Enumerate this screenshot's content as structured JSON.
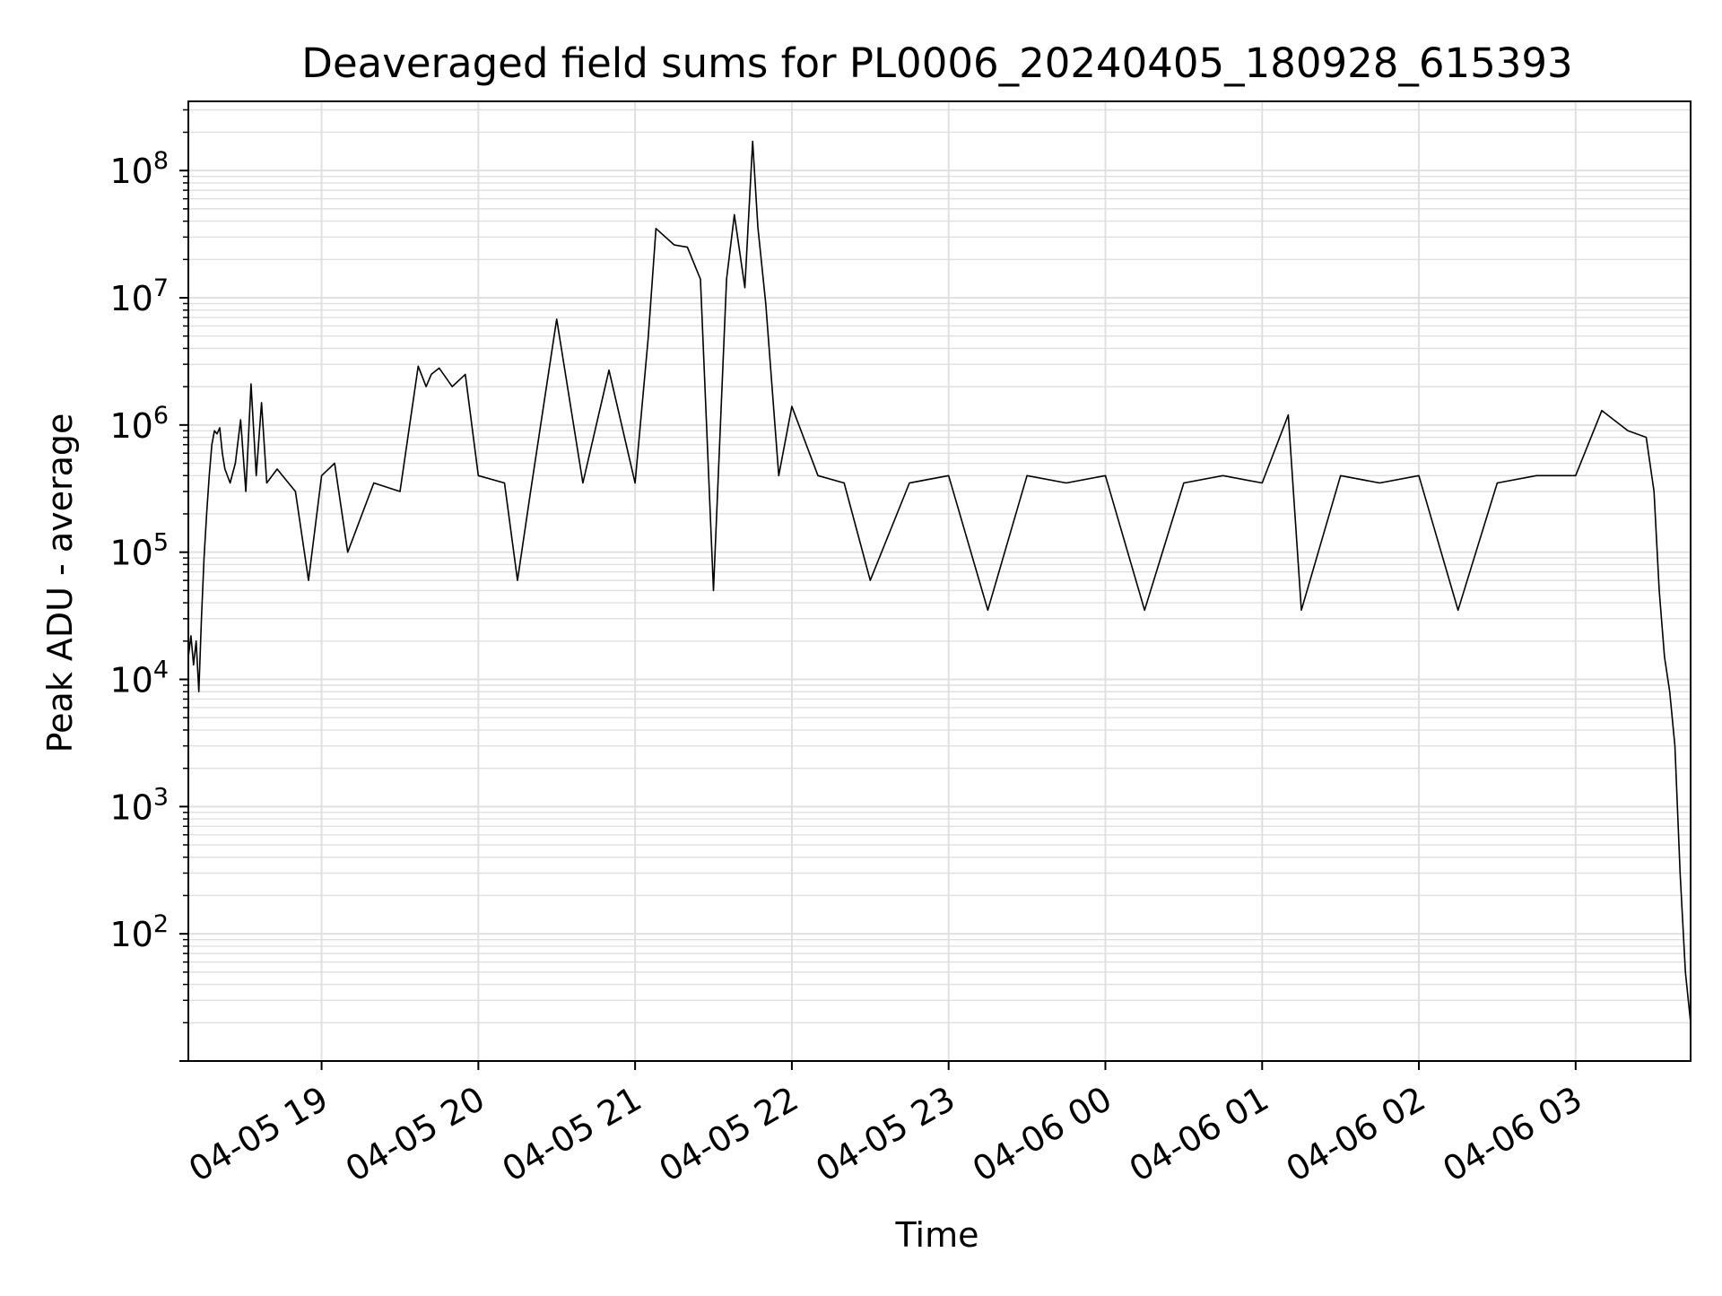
{
  "chart_data": {
    "type": "line",
    "title": "Deaveraged field sums for PL0006_20240405_180928_615393",
    "xlabel": "Time",
    "ylabel": "Peak ADU - average",
    "yscale": "log",
    "ylim": [
      10,
      350000000
    ],
    "xlim": [
      "2024-04-05 18:09",
      "2024-04-06 03:44"
    ],
    "grid": true,
    "x_ticks": [
      {
        "t": "2024-04-05 19:00",
        "label": "04-05 19"
      },
      {
        "t": "2024-04-05 20:00",
        "label": "04-05 20"
      },
      {
        "t": "2024-04-05 21:00",
        "label": "04-05 21"
      },
      {
        "t": "2024-04-05 22:00",
        "label": "04-05 22"
      },
      {
        "t": "2024-04-05 23:00",
        "label": "04-05 23"
      },
      {
        "t": "2024-04-06 00:00",
        "label": "04-06 00"
      },
      {
        "t": "2024-04-06 01:00",
        "label": "04-06 01"
      },
      {
        "t": "2024-04-06 02:00",
        "label": "04-06 02"
      },
      {
        "t": "2024-04-06 03:00",
        "label": "04-06 03"
      }
    ],
    "y_ticks": [
      {
        "value": 100,
        "base": "10",
        "exp": "2"
      },
      {
        "value": 1000,
        "base": "10",
        "exp": "3"
      },
      {
        "value": 10000,
        "base": "10",
        "exp": "4"
      },
      {
        "value": 100000,
        "base": "10",
        "exp": "5"
      },
      {
        "value": 1000000,
        "base": "10",
        "exp": "6"
      },
      {
        "value": 10000000,
        "base": "10",
        "exp": "7"
      },
      {
        "value": 100000000,
        "base": "10",
        "exp": "8"
      }
    ],
    "colors": {
      "line": "#000000",
      "grid": "#e0e0e0",
      "axes": "#000000"
    },
    "series": [
      {
        "points": [
          [
            "2024-04-05 18:09",
            15000
          ],
          [
            "2024-04-05 18:10",
            22000
          ],
          [
            "2024-04-05 18:11",
            13000
          ],
          [
            "2024-04-05 18:12",
            20000
          ],
          [
            "2024-04-05 18:13",
            8000
          ],
          [
            "2024-04-05 18:14",
            30000
          ],
          [
            "2024-04-05 18:15",
            90000
          ],
          [
            "2024-04-05 18:16",
            200000
          ],
          [
            "2024-04-05 18:17",
            400000
          ],
          [
            "2024-04-05 18:18",
            700000
          ],
          [
            "2024-04-05 18:19",
            900000
          ],
          [
            "2024-04-05 18:20",
            850000
          ],
          [
            "2024-04-05 18:21",
            950000
          ],
          [
            "2024-04-05 18:22",
            600000
          ],
          [
            "2024-04-05 18:23",
            450000
          ],
          [
            "2024-04-05 18:25",
            350000
          ],
          [
            "2024-04-05 18:27",
            500000
          ],
          [
            "2024-04-05 18:29",
            1100000
          ],
          [
            "2024-04-05 18:31",
            300000
          ],
          [
            "2024-04-05 18:33",
            2100000
          ],
          [
            "2024-04-05 18:35",
            400000
          ],
          [
            "2024-04-05 18:37",
            1500000
          ],
          [
            "2024-04-05 18:39",
            350000
          ],
          [
            "2024-04-05 18:43",
            450000
          ],
          [
            "2024-04-05 18:50",
            300000
          ],
          [
            "2024-04-05 18:55",
            60000
          ],
          [
            "2024-04-05 19:00",
            400000
          ],
          [
            "2024-04-05 19:05",
            500000
          ],
          [
            "2024-04-05 19:10",
            100000
          ],
          [
            "2024-04-05 19:20",
            350000
          ],
          [
            "2024-04-05 19:30",
            300000
          ],
          [
            "2024-04-05 19:37",
            2900000
          ],
          [
            "2024-04-05 19:40",
            2000000
          ],
          [
            "2024-04-05 19:42",
            2500000
          ],
          [
            "2024-04-05 19:45",
            2800000
          ],
          [
            "2024-04-05 19:50",
            2000000
          ],
          [
            "2024-04-05 19:55",
            2500000
          ],
          [
            "2024-04-05 20:00",
            400000
          ],
          [
            "2024-04-05 20:10",
            350000
          ],
          [
            "2024-04-05 20:15",
            60000
          ],
          [
            "2024-04-05 20:20",
            300000
          ],
          [
            "2024-04-05 20:30",
            6800000
          ],
          [
            "2024-04-05 20:40",
            350000
          ],
          [
            "2024-04-05 20:50",
            2700000
          ],
          [
            "2024-04-05 21:00",
            350000
          ],
          [
            "2024-04-05 21:05",
            4800000
          ],
          [
            "2024-04-05 21:08",
            35000000
          ],
          [
            "2024-04-05 21:15",
            26000000
          ],
          [
            "2024-04-05 21:20",
            25000000
          ],
          [
            "2024-04-05 21:25",
            14000000
          ],
          [
            "2024-04-05 21:30",
            50000
          ],
          [
            "2024-04-05 21:35",
            14000000
          ],
          [
            "2024-04-05 21:38",
            45000000
          ],
          [
            "2024-04-05 21:42",
            12000000
          ],
          [
            "2024-04-05 21:45",
            170000000
          ],
          [
            "2024-04-05 21:47",
            36000000
          ],
          [
            "2024-04-05 21:50",
            9000000
          ],
          [
            "2024-04-05 21:55",
            400000
          ],
          [
            "2024-04-05 22:00",
            1400000
          ],
          [
            "2024-04-05 22:10",
            400000
          ],
          [
            "2024-04-05 22:20",
            350000
          ],
          [
            "2024-04-05 22:30",
            60000
          ],
          [
            "2024-04-05 22:45",
            350000
          ],
          [
            "2024-04-05 23:00",
            400000
          ],
          [
            "2024-04-05 23:15",
            35000
          ],
          [
            "2024-04-05 23:30",
            400000
          ],
          [
            "2024-04-05 23:45",
            350000
          ],
          [
            "2024-04-06 00:00",
            400000
          ],
          [
            "2024-04-06 00:15",
            35000
          ],
          [
            "2024-04-06 00:30",
            350000
          ],
          [
            "2024-04-06 00:45",
            400000
          ],
          [
            "2024-04-06 01:00",
            350000
          ],
          [
            "2024-04-06 01:10",
            1200000
          ],
          [
            "2024-04-06 01:15",
            35000
          ],
          [
            "2024-04-06 01:30",
            400000
          ],
          [
            "2024-04-06 01:45",
            350000
          ],
          [
            "2024-04-06 02:00",
            400000
          ],
          [
            "2024-04-06 02:15",
            35000
          ],
          [
            "2024-04-06 02:30",
            350000
          ],
          [
            "2024-04-06 02:45",
            400000
          ],
          [
            "2024-04-06 03:00",
            400000
          ],
          [
            "2024-04-06 03:10",
            1300000
          ],
          [
            "2024-04-06 03:20",
            900000
          ],
          [
            "2024-04-06 03:27",
            800000
          ],
          [
            "2024-04-06 03:30",
            300000
          ],
          [
            "2024-04-06 03:32",
            50000
          ],
          [
            "2024-04-06 03:34",
            15000
          ],
          [
            "2024-04-06 03:36",
            8000
          ],
          [
            "2024-04-06 03:38",
            3000
          ],
          [
            "2024-04-06 03:40",
            300
          ],
          [
            "2024-04-06 03:42",
            50
          ],
          [
            "2024-04-06 03:44",
            20
          ]
        ]
      }
    ]
  }
}
